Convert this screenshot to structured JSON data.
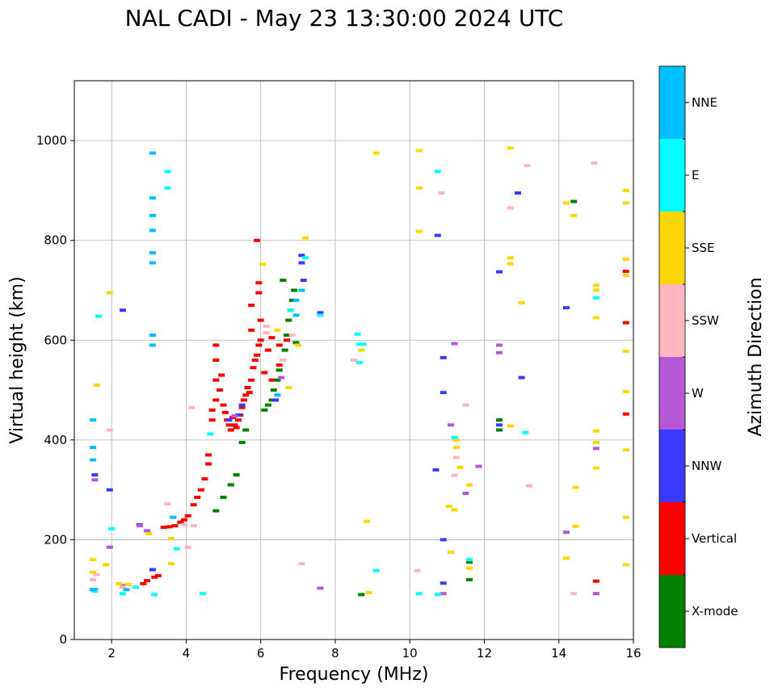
{
  "chart_data": {
    "type": "scatter",
    "title": "NAL CADI - May 23 13:30:00 2024 UTC",
    "xlabel": "Frequency (MHz)",
    "ylabel": "Virtual height (km)",
    "xlim": [
      1,
      16
    ],
    "ylim": [
      0,
      1120
    ],
    "xticks": [
      2,
      4,
      6,
      8,
      10,
      12,
      14,
      16
    ],
    "yticks": [
      0,
      200,
      400,
      600,
      800,
      1000
    ],
    "grid": true,
    "colorbar": {
      "title": "Azimuth Direction",
      "categories": [
        {
          "name": "X-mode",
          "color": "#008000"
        },
        {
          "name": "Vertical",
          "color": "#ff0000"
        },
        {
          "name": "NNW",
          "color": "#3b3bff"
        },
        {
          "name": "W",
          "color": "#b557d6"
        },
        {
          "name": "SSW",
          "color": "#ffb6c1"
        },
        {
          "name": "SSE",
          "color": "#ffd700"
        },
        {
          "name": "E",
          "color": "#00ffff"
        },
        {
          "name": "NNE",
          "color": "#00bfff"
        }
      ]
    },
    "series": [
      {
        "name": "Vertical",
        "points": [
          [
            2.85,
            112
          ],
          [
            2.95,
            118
          ],
          [
            3.15,
            125
          ],
          [
            3.25,
            128
          ],
          [
            3.4,
            225
          ],
          [
            3.55,
            226
          ],
          [
            3.7,
            228
          ],
          [
            3.85,
            235
          ],
          [
            3.95,
            240
          ],
          [
            4.05,
            248
          ],
          [
            4.2,
            270
          ],
          [
            4.3,
            285
          ],
          [
            4.4,
            300
          ],
          [
            4.5,
            322
          ],
          [
            4.6,
            352
          ],
          [
            4.6,
            370
          ],
          [
            4.7,
            440
          ],
          [
            4.7,
            460
          ],
          [
            4.8,
            480
          ],
          [
            4.8,
            520
          ],
          [
            4.8,
            560
          ],
          [
            4.8,
            590
          ],
          [
            4.9,
            500
          ],
          [
            4.95,
            530
          ],
          [
            5.0,
            470
          ],
          [
            5.05,
            455
          ],
          [
            5.1,
            440
          ],
          [
            5.15,
            430
          ],
          [
            5.2,
            420
          ],
          [
            5.25,
            445
          ],
          [
            5.3,
            430
          ],
          [
            5.35,
            425
          ],
          [
            5.4,
            440
          ],
          [
            5.45,
            450
          ],
          [
            5.5,
            465
          ],
          [
            5.55,
            480
          ],
          [
            5.6,
            490
          ],
          [
            5.65,
            505
          ],
          [
            5.7,
            495
          ],
          [
            5.75,
            520
          ],
          [
            5.8,
            545
          ],
          [
            5.85,
            560
          ],
          [
            5.9,
            570
          ],
          [
            5.95,
            590
          ],
          [
            6.0,
            600
          ],
          [
            6.0,
            640
          ],
          [
            5.75,
            620
          ],
          [
            5.75,
            670
          ],
          [
            5.95,
            715
          ],
          [
            5.95,
            695
          ],
          [
            5.9,
            800
          ],
          [
            6.3,
            605
          ],
          [
            6.5,
            590
          ],
          [
            6.7,
            600
          ],
          [
            6.2,
            580
          ],
          [
            6.1,
            535
          ],
          [
            6.3,
            520
          ],
          [
            6.5,
            550
          ],
          [
            15.0,
            117
          ],
          [
            15.8,
            452
          ],
          [
            15.8,
            635
          ],
          [
            15.8,
            738
          ]
        ]
      },
      {
        "name": "X-mode",
        "points": [
          [
            4.8,
            258
          ],
          [
            5.0,
            285
          ],
          [
            5.2,
            310
          ],
          [
            5.35,
            330
          ],
          [
            5.5,
            395
          ],
          [
            5.6,
            420
          ],
          [
            6.1,
            460
          ],
          [
            6.2,
            470
          ],
          [
            6.3,
            480
          ],
          [
            6.35,
            500
          ],
          [
            6.45,
            520
          ],
          [
            6.5,
            540
          ],
          [
            6.6,
            560
          ],
          [
            6.65,
            580
          ],
          [
            6.7,
            610
          ],
          [
            6.75,
            640
          ],
          [
            6.8,
            660
          ],
          [
            6.85,
            680
          ],
          [
            6.9,
            700
          ],
          [
            6.6,
            720
          ],
          [
            6.95,
            595
          ],
          [
            8.7,
            90
          ],
          [
            11.6,
            120
          ],
          [
            11.6,
            155
          ],
          [
            12.4,
            420
          ],
          [
            12.4,
            440
          ],
          [
            14.4,
            878
          ]
        ]
      },
      {
        "name": "NNW",
        "points": [
          [
            1.5,
            100
          ],
          [
            1.55,
            330
          ],
          [
            1.95,
            300
          ],
          [
            2.3,
            660
          ],
          [
            2.75,
            230
          ],
          [
            3.1,
            140
          ],
          [
            5.15,
            440
          ],
          [
            5.4,
            450
          ],
          [
            5.5,
            470
          ],
          [
            6.4,
            480
          ],
          [
            7.1,
            770
          ],
          [
            7.1,
            755
          ],
          [
            7.15,
            720
          ],
          [
            7.6,
            655
          ],
          [
            10.7,
            340
          ],
          [
            10.75,
            810
          ],
          [
            10.9,
            113
          ],
          [
            10.9,
            200
          ],
          [
            10.9,
            495
          ],
          [
            10.9,
            565
          ],
          [
            12.4,
            430
          ],
          [
            12.9,
            895
          ],
          [
            13.0,
            525
          ],
          [
            14.2,
            665
          ],
          [
            12.4,
            737
          ]
        ]
      },
      {
        "name": "W",
        "points": [
          [
            1.55,
            100
          ],
          [
            1.55,
            320
          ],
          [
            1.95,
            185
          ],
          [
            2.3,
            108
          ],
          [
            2.75,
            228
          ],
          [
            2.95,
            218
          ],
          [
            5.3,
            448
          ],
          [
            6.55,
            525
          ],
          [
            7.6,
            103
          ],
          [
            10.9,
            92
          ],
          [
            11.1,
            430
          ],
          [
            11.2,
            593
          ],
          [
            11.5,
            293
          ],
          [
            11.85,
            347
          ],
          [
            12.4,
            575
          ],
          [
            12.4,
            590
          ],
          [
            14.2,
            215
          ],
          [
            15.0,
            383
          ],
          [
            15.0,
            92
          ]
        ]
      },
      {
        "name": "SSW",
        "points": [
          [
            1.5,
            120
          ],
          [
            1.6,
            130
          ],
          [
            1.95,
            420
          ],
          [
            2.3,
            105
          ],
          [
            3.5,
            272
          ],
          [
            3.95,
            230
          ],
          [
            4.2,
            228
          ],
          [
            4.05,
            185
          ],
          [
            4.15,
            465
          ],
          [
            6.15,
            615
          ],
          [
            6.15,
            628
          ],
          [
            6.6,
            560
          ],
          [
            6.85,
            610
          ],
          [
            7.1,
            152
          ],
          [
            8.5,
            560
          ],
          [
            10.2,
            138
          ],
          [
            10.85,
            895
          ],
          [
            11.25,
            365
          ],
          [
            11.5,
            470
          ],
          [
            12.7,
            865
          ],
          [
            13.15,
            950
          ],
          [
            13.2,
            308
          ],
          [
            14.4,
            92
          ],
          [
            14.95,
            955
          ],
          [
            11.2,
            329
          ]
        ]
      },
      {
        "name": "SSE",
        "points": [
          [
            1.5,
            135
          ],
          [
            1.5,
            160
          ],
          [
            1.6,
            510
          ],
          [
            1.85,
            150
          ],
          [
            1.95,
            695
          ],
          [
            2.2,
            112
          ],
          [
            2.45,
            110
          ],
          [
            3.0,
            212
          ],
          [
            3.6,
            202
          ],
          [
            3.6,
            152
          ],
          [
            6.05,
            752
          ],
          [
            6.45,
            620
          ],
          [
            6.75,
            505
          ],
          [
            7.0,
            590
          ],
          [
            7.2,
            805
          ],
          [
            8.7,
            580
          ],
          [
            8.85,
            237
          ],
          [
            8.9,
            94
          ],
          [
            9.1,
            975
          ],
          [
            10.25,
            980
          ],
          [
            10.25,
            905
          ],
          [
            10.25,
            818
          ],
          [
            11.05,
            267
          ],
          [
            11.1,
            175
          ],
          [
            11.2,
            260
          ],
          [
            11.25,
            400
          ],
          [
            11.25,
            385
          ],
          [
            11.35,
            345
          ],
          [
            11.6,
            310
          ],
          [
            11.6,
            143
          ],
          [
            12.7,
            985
          ],
          [
            12.7,
            765
          ],
          [
            12.7,
            753
          ],
          [
            12.7,
            428
          ],
          [
            13.0,
            675
          ],
          [
            14.2,
            875
          ],
          [
            14.2,
            163
          ],
          [
            14.4,
            850
          ],
          [
            14.45,
            305
          ],
          [
            14.45,
            227
          ],
          [
            15.0,
            710
          ],
          [
            15.0,
            700
          ],
          [
            15.0,
            645
          ],
          [
            15.0,
            418
          ],
          [
            15.0,
            395
          ],
          [
            15.0,
            344
          ],
          [
            15.8,
            900
          ],
          [
            15.8,
            875
          ],
          [
            15.8,
            762
          ],
          [
            15.8,
            730
          ],
          [
            15.8,
            578
          ],
          [
            15.8,
            497
          ],
          [
            15.8,
            380
          ],
          [
            15.8,
            245
          ],
          [
            15.8,
            150
          ]
        ]
      },
      {
        "name": "E",
        "points": [
          [
            1.55,
            97
          ],
          [
            1.65,
            648
          ],
          [
            2.0,
            222
          ],
          [
            2.3,
            92
          ],
          [
            2.65,
            105
          ],
          [
            3.15,
            90
          ],
          [
            3.5,
            905
          ],
          [
            3.5,
            938
          ],
          [
            3.75,
            182
          ],
          [
            4.45,
            92
          ],
          [
            4.65,
            412
          ],
          [
            6.8,
            660
          ],
          [
            7.2,
            765
          ],
          [
            7.6,
            650
          ],
          [
            8.6,
            612
          ],
          [
            8.65,
            592
          ],
          [
            8.65,
            555
          ],
          [
            8.75,
            592
          ],
          [
            9.1,
            138
          ],
          [
            10.25,
            92
          ],
          [
            10.75,
            938
          ],
          [
            10.75,
            90
          ],
          [
            11.2,
            405
          ],
          [
            11.6,
            160
          ],
          [
            13.1,
            415
          ],
          [
            15.0,
            685
          ]
        ]
      },
      {
        "name": "NNE",
        "points": [
          [
            1.5,
            440
          ],
          [
            1.5,
            385
          ],
          [
            1.5,
            360
          ],
          [
            1.5,
            100
          ],
          [
            3.1,
            975
          ],
          [
            3.1,
            885
          ],
          [
            3.1,
            850
          ],
          [
            3.1,
            820
          ],
          [
            3.1,
            775
          ],
          [
            3.1,
            755
          ],
          [
            3.1,
            610
          ],
          [
            3.1,
            590
          ],
          [
            2.4,
            100
          ],
          [
            3.65,
            245
          ],
          [
            6.95,
            680
          ],
          [
            6.95,
            650
          ],
          [
            6.45,
            490
          ],
          [
            7.1,
            700
          ]
        ]
      }
    ]
  }
}
